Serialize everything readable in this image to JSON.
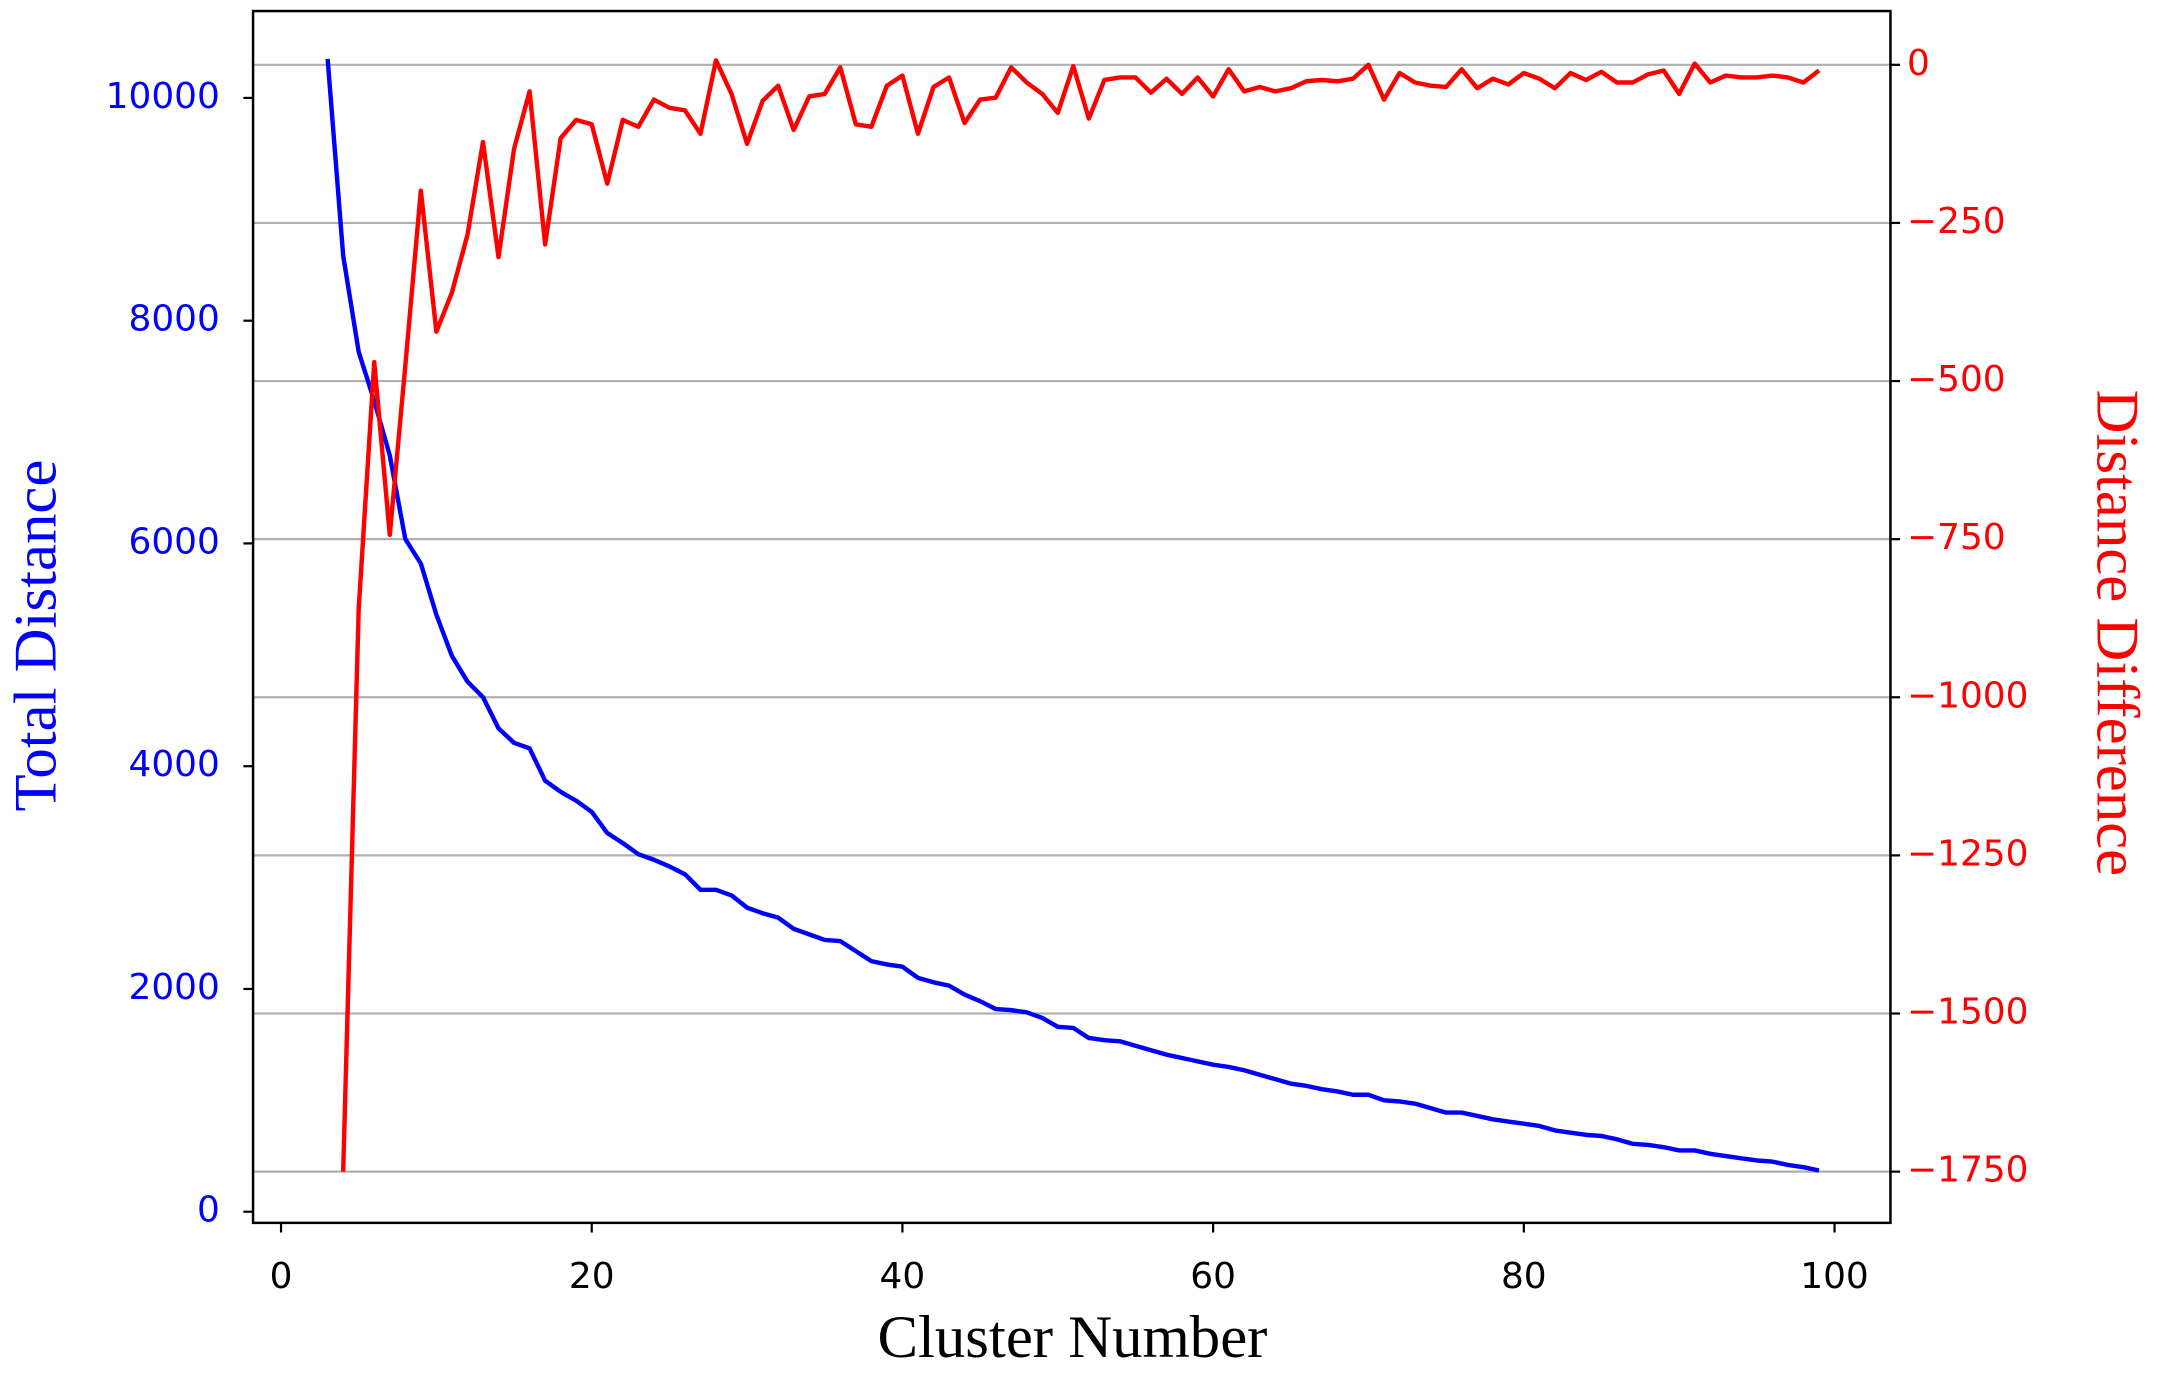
{
  "chart_data": {
    "type": "line",
    "xlabel": "Cluster Number",
    "ylabel": "Total Distance",
    "y2label": "Distance Difference",
    "xlim": [
      -1.8,
      103.6
    ],
    "xticks": [
      0,
      20,
      40,
      60,
      80,
      100
    ],
    "ylim": [
      -100,
      10780
    ],
    "yticks": [
      0,
      2000,
      4000,
      6000,
      8000,
      10000
    ],
    "y2lim": [
      -1831,
      85
    ],
    "y2ticks": [
      0,
      {
        "value": -250,
        "label": "−250"
      },
      {
        "value": -500,
        "label": "−500"
      },
      {
        "value": -750,
        "label": "−750"
      },
      {
        "value": -1000,
        "label": "−1000"
      },
      {
        "value": -1250,
        "label": "−1250"
      },
      {
        "value": -1500,
        "label": "−1500"
      },
      {
        "value": -1750,
        "label": "−1750"
      }
    ],
    "grid": "y2",
    "ylabel_color": "#0000ff",
    "y2label_color": "#ff0000",
    "series": [
      {
        "color": "#0000ff",
        "axis": "y",
        "x": [
          3,
          4,
          5,
          6,
          7,
          8,
          9,
          10,
          11,
          12,
          13,
          14,
          15,
          16,
          17,
          18,
          19,
          20,
          21,
          22,
          23,
          24,
          25,
          26,
          27,
          28,
          29,
          30,
          31,
          32,
          33,
          34,
          35,
          36,
          37,
          38,
          39,
          40,
          41,
          42,
          43,
          44,
          45,
          46,
          47,
          48,
          49,
          50,
          51,
          52,
          53,
          54,
          55,
          56,
          57,
          58,
          59,
          60,
          61,
          62,
          63,
          64,
          65,
          66,
          67,
          68,
          69,
          70,
          71,
          72,
          73,
          74,
          75,
          76,
          77,
          78,
          79,
          80,
          81,
          82,
          83,
          84,
          85,
          86,
          87,
          88,
          89,
          90,
          91,
          92,
          93,
          94,
          95,
          96,
          97,
          98,
          99
        ],
        "values": [
          10350,
          8585,
          7720,
          7280,
          6790,
          6040,
          5820,
          5360,
          4990,
          4760,
          4620,
          4340,
          4210,
          4160,
          3870,
          3770,
          3690,
          3590,
          3400,
          3310,
          3210,
          3160,
          3100,
          3030,
          2890,
          2890,
          2840,
          2730,
          2680,
          2640,
          2540,
          2490,
          2440,
          2430,
          2340,
          2250,
          2220,
          2200,
          2100,
          2060,
          2030,
          1950,
          1890,
          1820,
          1810,
          1790,
          1740,
          1660,
          1650,
          1560,
          1540,
          1530,
          1490,
          1450,
          1410,
          1380,
          1350,
          1320,
          1300,
          1270,
          1230,
          1190,
          1150,
          1130,
          1100,
          1080,
          1050,
          1050,
          1000,
          990,
          970,
          930,
          890,
          890,
          860,
          830,
          810,
          790,
          770,
          730,
          710,
          690,
          680,
          650,
          610,
          600,
          580,
          550,
          550,
          520,
          500,
          480,
          460,
          450,
          420,
          400,
          370
        ]
      },
      {
        "color": "#ff0000",
        "axis": "y2",
        "x": [
          4,
          5,
          6,
          7,
          8,
          9,
          10,
          11,
          12,
          13,
          14,
          15,
          16,
          17,
          18,
          19,
          20,
          21,
          22,
          23,
          24,
          25,
          26,
          27,
          28,
          29,
          30,
          31,
          32,
          33,
          34,
          35,
          36,
          37,
          38,
          39,
          40,
          41,
          42,
          43,
          44,
          45,
          46,
          47,
          48,
          49,
          50,
          51,
          52,
          53,
          54,
          55,
          56,
          57,
          58,
          59,
          60,
          61,
          62,
          63,
          64,
          65,
          66,
          67,
          68,
          69,
          70,
          71,
          72,
          73,
          74,
          75,
          76,
          77,
          78,
          79,
          80,
          81,
          82,
          83,
          84,
          85,
          86,
          87,
          88,
          89,
          90,
          91,
          92,
          93,
          94,
          95,
          96,
          97,
          98,
          99
        ],
        "values": [
          -1750,
          -860,
          -470,
          -743,
          -476,
          -199,
          -422,
          -360,
          -269,
          -122,
          -304,
          -133,
          -42,
          -284,
          -116,
          -87,
          -94,
          -188,
          -87,
          -98,
          -55,
          -68,
          -72,
          -109,
          7,
          -46,
          -125,
          -57,
          -33,
          -103,
          -50,
          -46,
          -4,
          -94,
          -98,
          -33,
          -17,
          -109,
          -35,
          -20,
          -92,
          -55,
          -52,
          -4,
          -28,
          -46,
          -76,
          -2,
          -85,
          -24,
          -20,
          -20,
          -44,
          -22,
          -46,
          -20,
          -50,
          -7,
          -42,
          -35,
          -42,
          -37,
          -26,
          -24,
          -26,
          -22,
          0,
          -55,
          -13,
          -28,
          -33,
          -35,
          -7,
          -37,
          -22,
          -31,
          -13,
          -22,
          -37,
          -13,
          -24,
          -11,
          -28,
          -28,
          -15,
          -9,
          -46,
          2,
          -28,
          -17,
          -20,
          -20,
          -17,
          -20,
          -28,
          -9
        ]
      }
    ]
  }
}
